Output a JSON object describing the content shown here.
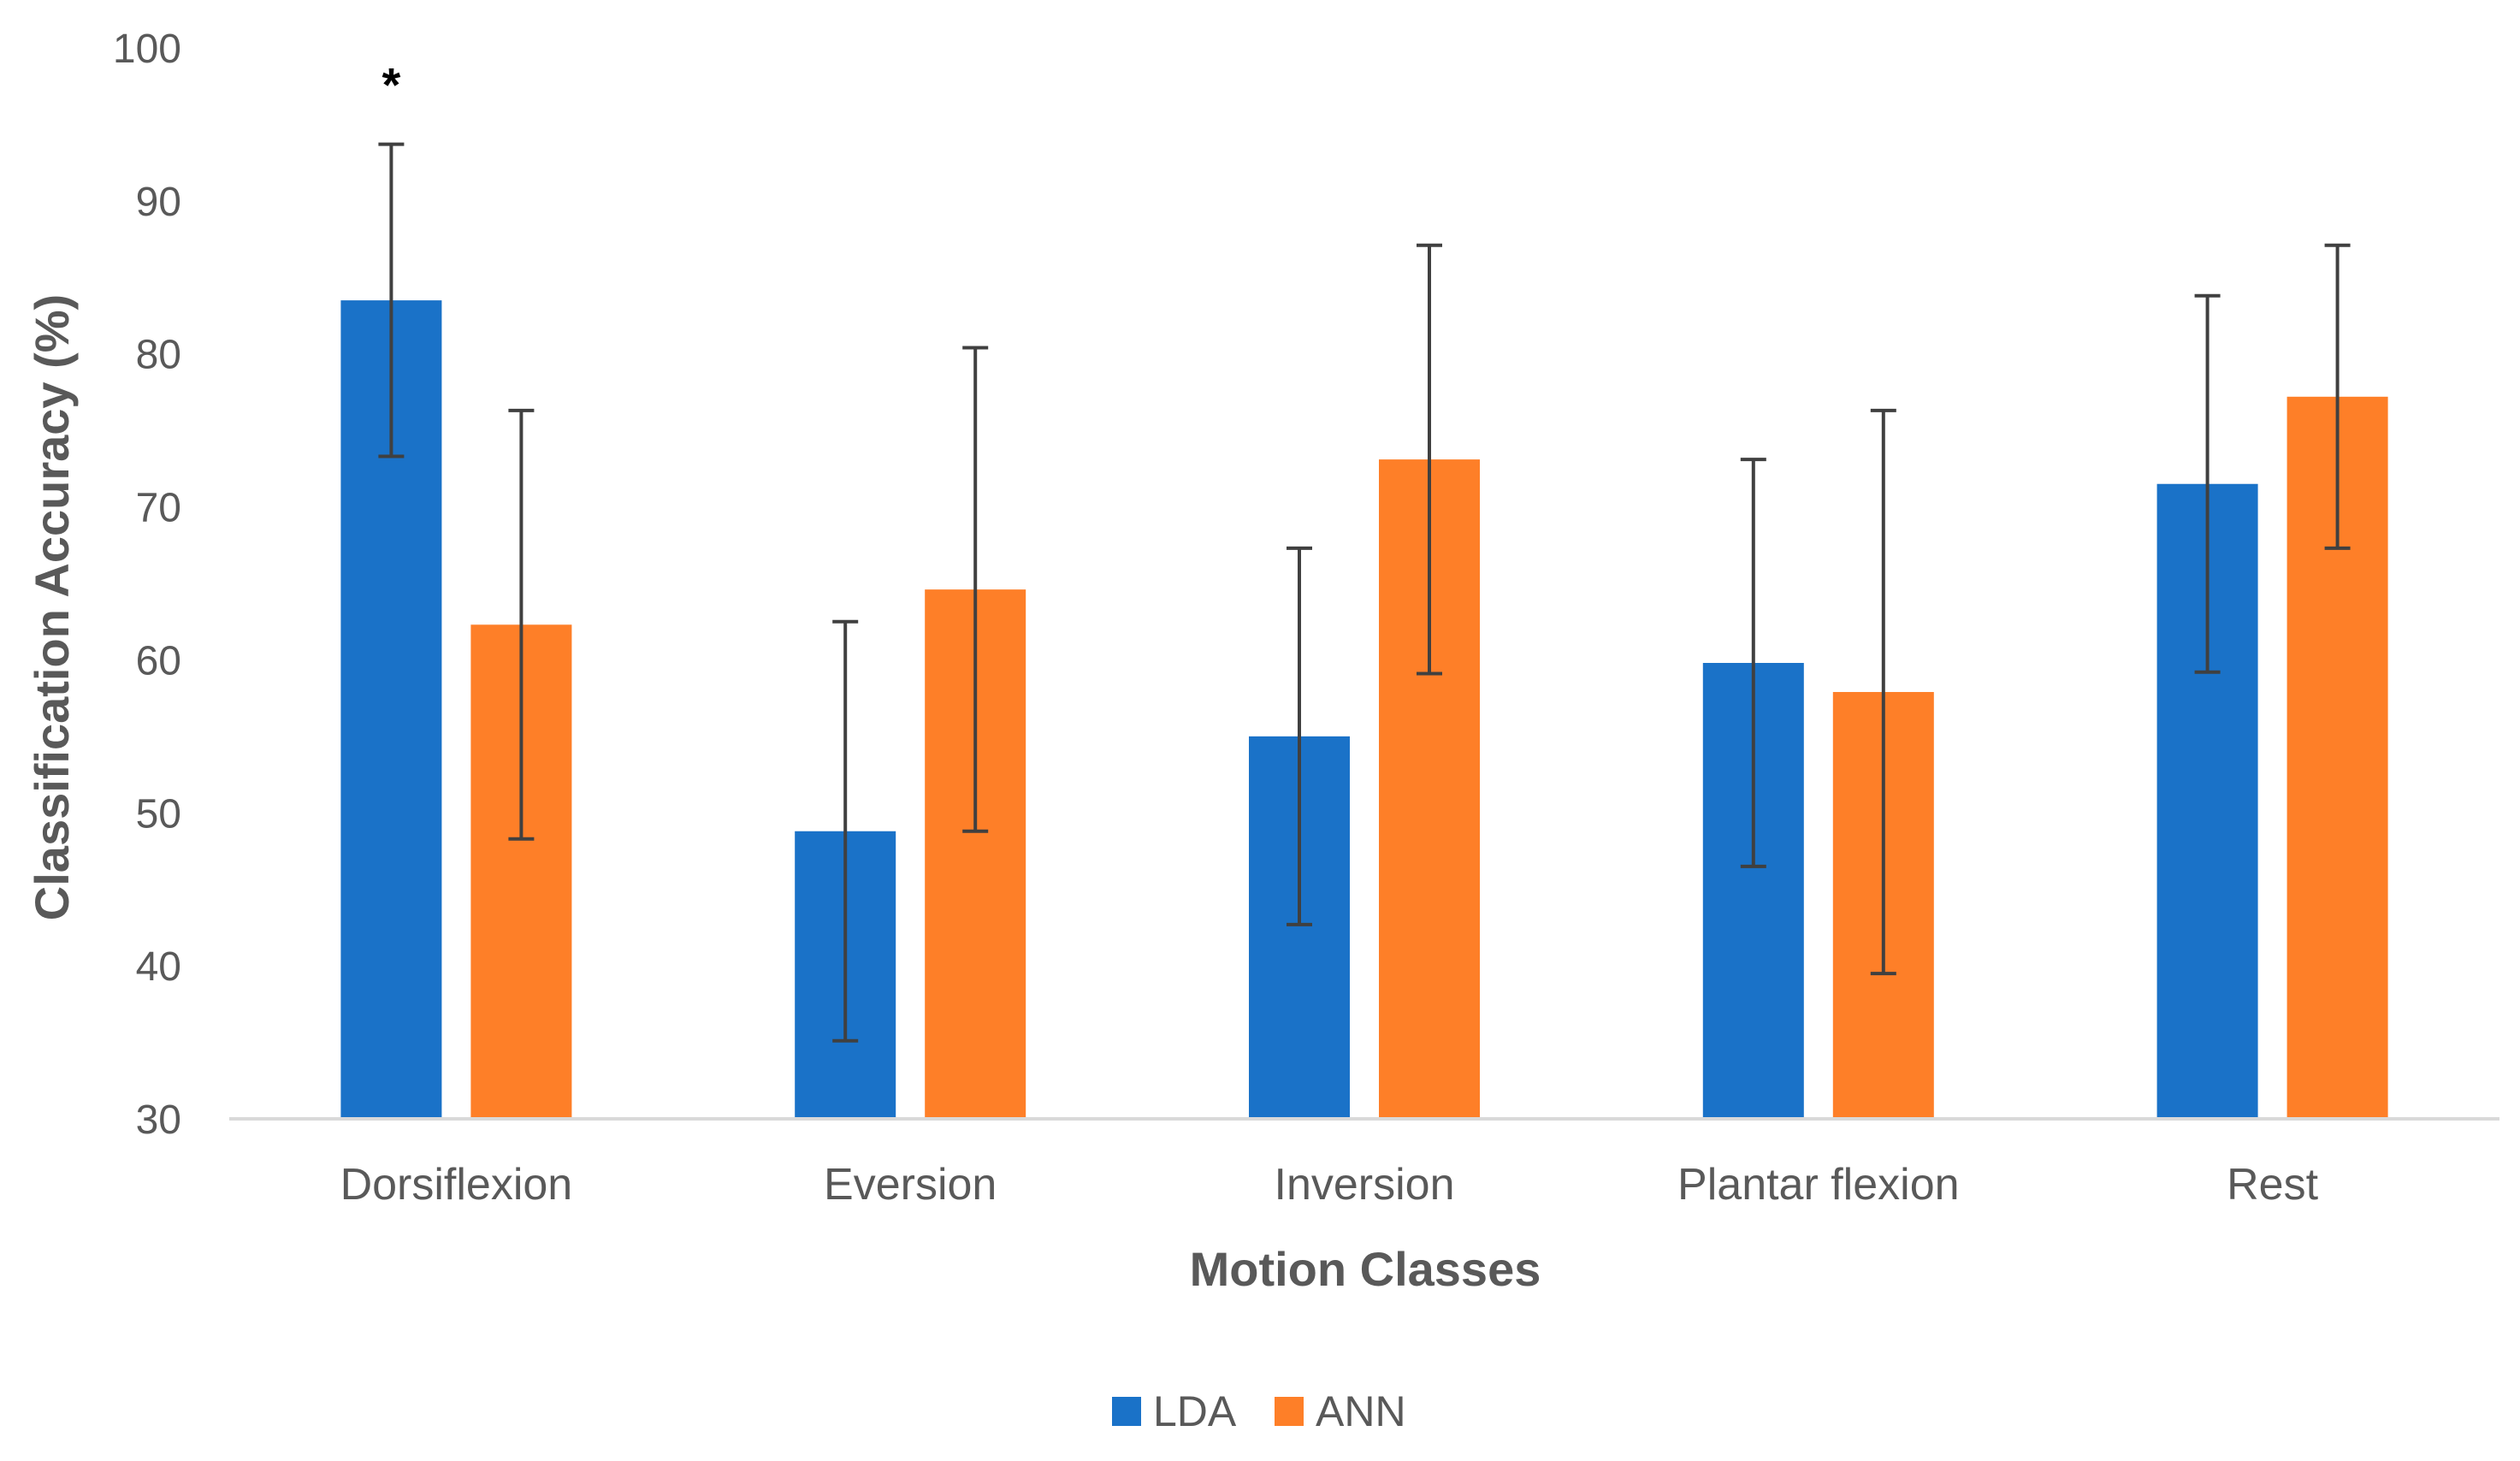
{
  "chart_data": {
    "type": "bar",
    "title": "",
    "xlabel": "Motion Classes",
    "ylabel": "Classification Accuracy  (%)",
    "ylim": [
      30,
      100
    ],
    "yticks": [
      30,
      40,
      50,
      60,
      70,
      80,
      90,
      100
    ],
    "grid": false,
    "legend_position": "bottom-center",
    "categories": [
      "Dorsiflexion",
      "Eversion",
      "Inversion",
      "Plantar flexion",
      "Rest"
    ],
    "series": [
      {
        "name": "LDA",
        "color": "#1a72c8",
        "values": [
          83.5,
          48.8,
          55.0,
          59.8,
          71.5
        ],
        "error": [
          10.2,
          13.7,
          12.3,
          13.3,
          12.3
        ]
      },
      {
        "name": "ANN",
        "color": "#fe7f28",
        "values": [
          62.3,
          64.6,
          73.1,
          57.9,
          77.2
        ],
        "error": [
          14.0,
          15.8,
          14.0,
          18.4,
          9.9
        ]
      }
    ],
    "annotations": [
      {
        "text": "*",
        "category": "Dorsiflexion",
        "series": "LDA"
      }
    ]
  }
}
